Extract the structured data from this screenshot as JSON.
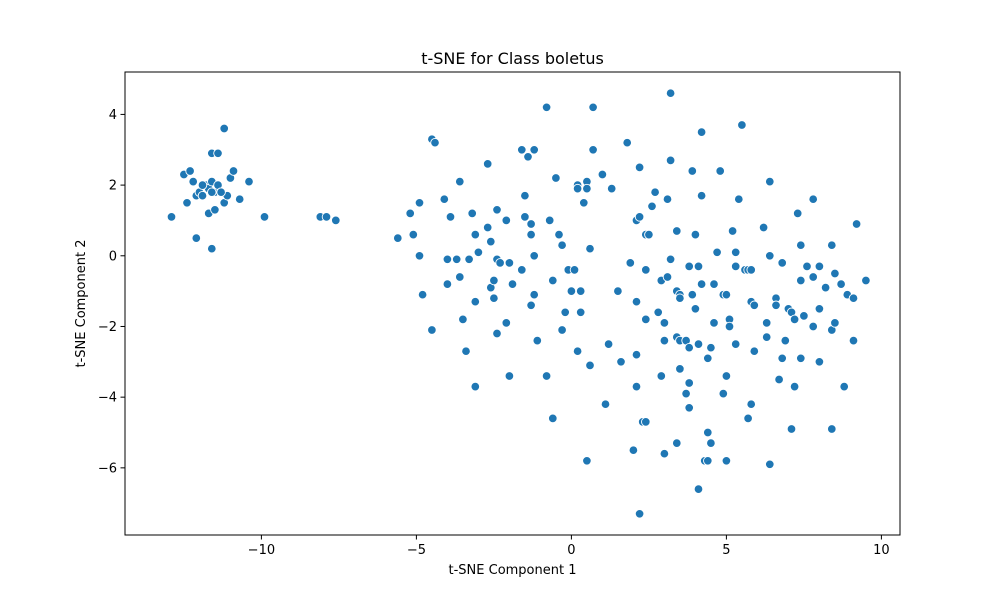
{
  "chart_data": {
    "type": "scatter",
    "title": "t-SNE for Class boletus",
    "xlabel": "t-SNE Component 1",
    "ylabel": "t-SNE Component 2",
    "xlim": [
      -14.4,
      10.6
    ],
    "ylim": [
      -7.9,
      5.2
    ],
    "xticks": [
      -10,
      -5,
      0,
      5,
      10
    ],
    "xtick_labels": [
      "−10",
      "−5",
      "0",
      "5",
      "10"
    ],
    "yticks": [
      -6,
      -4,
      -2,
      0,
      2,
      4
    ],
    "ytick_labels": [
      "−6",
      "−4",
      "−2",
      "0",
      "2",
      "4"
    ],
    "grid": false,
    "color": "#1f77b4",
    "series": [
      {
        "name": "boletus",
        "points": [
          [
            -12.9,
            1.1
          ],
          [
            -12.5,
            2.3
          ],
          [
            -12.4,
            1.5
          ],
          [
            -12.3,
            2.4
          ],
          [
            -12.2,
            2.1
          ],
          [
            -12.1,
            1.7
          ],
          [
            -12.0,
            1.8
          ],
          [
            -11.9,
            1.7
          ],
          [
            -11.8,
            2.0
          ],
          [
            -11.7,
            1.9
          ],
          [
            -11.6,
            2.1
          ],
          [
            -11.6,
            2.9
          ],
          [
            -11.5,
            1.8
          ],
          [
            -11.4,
            2.9
          ],
          [
            -11.4,
            2.0
          ],
          [
            -11.3,
            1.8
          ],
          [
            -11.2,
            1.5
          ],
          [
            -11.1,
            1.7
          ],
          [
            -11.0,
            2.2
          ],
          [
            -10.9,
            2.4
          ],
          [
            -11.7,
            1.2
          ],
          [
            -11.5,
            1.3
          ],
          [
            -11.2,
            3.6
          ],
          [
            -11.6,
            0.2
          ],
          [
            -12.1,
            0.5
          ],
          [
            -10.7,
            1.6
          ],
          [
            -10.4,
            2.1
          ],
          [
            -11.6,
            1.8
          ],
          [
            -11.3,
            1.8
          ],
          [
            -11.9,
            2.0
          ],
          [
            -9.9,
            1.1
          ],
          [
            -8.1,
            1.1
          ],
          [
            -7.9,
            1.1
          ],
          [
            -7.6,
            1.0
          ],
          [
            -5.6,
            0.5
          ],
          [
            -5.2,
            1.2
          ],
          [
            -5.1,
            0.6
          ],
          [
            -4.9,
            1.5
          ],
          [
            -4.9,
            0.0
          ],
          [
            -4.8,
            -1.1
          ],
          [
            -4.5,
            3.3
          ],
          [
            -4.4,
            3.2
          ],
          [
            -4.5,
            -2.1
          ],
          [
            -4.1,
            1.6
          ],
          [
            -3.9,
            1.1
          ],
          [
            -4.0,
            -0.1
          ],
          [
            -4.0,
            -0.8
          ],
          [
            -3.7,
            -0.1
          ],
          [
            -3.6,
            -0.6
          ],
          [
            -3.5,
            -1.8
          ],
          [
            -3.6,
            2.1
          ],
          [
            -3.4,
            -2.7
          ],
          [
            -3.3,
            -0.1
          ],
          [
            -3.2,
            1.2
          ],
          [
            -3.1,
            0.6
          ],
          [
            -3.0,
            0.1
          ],
          [
            -3.1,
            -1.3
          ],
          [
            -3.1,
            -3.7
          ],
          [
            -2.7,
            2.6
          ],
          [
            -2.7,
            0.8
          ],
          [
            -2.6,
            0.4
          ],
          [
            -2.6,
            -0.9
          ],
          [
            -2.5,
            -0.7
          ],
          [
            -2.5,
            -1.2
          ],
          [
            -2.4,
            -2.2
          ],
          [
            -2.4,
            1.3
          ],
          [
            -2.4,
            -0.1
          ],
          [
            -2.3,
            -0.2
          ],
          [
            -2.1,
            1.0
          ],
          [
            -2.1,
            -1.9
          ],
          [
            -2.0,
            -0.2
          ],
          [
            -2.0,
            -3.4
          ],
          [
            -1.9,
            -0.8
          ],
          [
            -1.6,
            -0.4
          ],
          [
            -1.6,
            3.0
          ],
          [
            -1.5,
            1.7
          ],
          [
            -1.5,
            1.1
          ],
          [
            -1.4,
            2.8
          ],
          [
            -1.3,
            0.9
          ],
          [
            -1.3,
            0.6
          ],
          [
            -1.3,
            -1.4
          ],
          [
            -1.2,
            -1.1
          ],
          [
            -1.2,
            3.0
          ],
          [
            -1.2,
            0.0
          ],
          [
            -1.1,
            -2.4
          ],
          [
            -0.8,
            4.2
          ],
          [
            -0.8,
            -3.4
          ],
          [
            -0.7,
            1.0
          ],
          [
            -0.6,
            -0.7
          ],
          [
            -0.5,
            2.2
          ],
          [
            -0.4,
            0.6
          ],
          [
            -0.3,
            0.3
          ],
          [
            -0.3,
            -2.1
          ],
          [
            -0.2,
            -1.6
          ],
          [
            -0.1,
            -0.4
          ],
          [
            0.0,
            -1.0
          ],
          [
            0.1,
            -0.4
          ],
          [
            0.2,
            2.0
          ],
          [
            0.2,
            1.9
          ],
          [
            0.2,
            -2.7
          ],
          [
            0.3,
            -1.0
          ],
          [
            0.3,
            -1.6
          ],
          [
            0.4,
            1.5
          ],
          [
            0.5,
            2.1
          ],
          [
            0.5,
            1.9
          ],
          [
            0.6,
            0.2
          ],
          [
            0.6,
            -3.1
          ],
          [
            0.7,
            4.2
          ],
          [
            0.7,
            3.0
          ],
          [
            0.5,
            -5.8
          ],
          [
            -0.6,
            -4.6
          ],
          [
            1.0,
            2.3
          ],
          [
            1.1,
            -4.2
          ],
          [
            1.2,
            -2.5
          ],
          [
            1.3,
            1.9
          ],
          [
            1.5,
            -1.0
          ],
          [
            1.6,
            -3.0
          ],
          [
            1.8,
            3.2
          ],
          [
            1.9,
            -0.2
          ],
          [
            2.0,
            -5.5
          ],
          [
            2.1,
            -3.7
          ],
          [
            2.1,
            -1.3
          ],
          [
            2.1,
            -2.8
          ],
          [
            2.1,
            1.0
          ],
          [
            2.2,
            1.1
          ],
          [
            2.2,
            2.5
          ],
          [
            2.3,
            -4.7
          ],
          [
            2.4,
            -4.7
          ],
          [
            2.4,
            -0.4
          ],
          [
            2.4,
            -1.8
          ],
          [
            2.4,
            0.6
          ],
          [
            2.5,
            0.6
          ],
          [
            2.6,
            1.4
          ],
          [
            2.7,
            1.8
          ],
          [
            2.9,
            -0.7
          ],
          [
            2.8,
            -1.6
          ],
          [
            3.0,
            -1.9
          ],
          [
            3.0,
            -2.4
          ],
          [
            3.1,
            1.6
          ],
          [
            3.0,
            -5.6
          ],
          [
            2.9,
            -3.4
          ],
          [
            3.1,
            -0.6
          ],
          [
            3.2,
            -0.1
          ],
          [
            3.2,
            2.7
          ],
          [
            3.2,
            4.6
          ],
          [
            3.4,
            0.7
          ],
          [
            3.4,
            -1.0
          ],
          [
            3.5,
            -1.1
          ],
          [
            3.5,
            -1.2
          ],
          [
            3.4,
            -2.3
          ],
          [
            3.5,
            -2.4
          ],
          [
            3.5,
            -3.2
          ],
          [
            3.4,
            -5.3
          ],
          [
            3.8,
            -3.6
          ],
          [
            3.8,
            -4.3
          ],
          [
            3.7,
            -3.9
          ],
          [
            3.7,
            -2.4
          ],
          [
            3.8,
            -2.6
          ],
          [
            3.8,
            -0.3
          ],
          [
            3.9,
            -1.1
          ],
          [
            4.0,
            -1.5
          ],
          [
            4.0,
            0.6
          ],
          [
            4.1,
            -0.3
          ],
          [
            4.2,
            -0.8
          ],
          [
            4.2,
            1.7
          ],
          [
            4.2,
            3.5
          ],
          [
            4.1,
            -2.5
          ],
          [
            4.1,
            -6.6
          ],
          [
            4.3,
            -5.8
          ],
          [
            4.4,
            -5.8
          ],
          [
            4.4,
            -5.0
          ],
          [
            4.5,
            -5.3
          ],
          [
            4.4,
            -2.9
          ],
          [
            4.5,
            -2.6
          ],
          [
            4.6,
            -0.8
          ],
          [
            4.7,
            0.1
          ],
          [
            4.8,
            2.4
          ],
          [
            4.9,
            -1.1
          ],
          [
            4.9,
            -3.9
          ],
          [
            5.0,
            -1.1
          ],
          [
            5.0,
            -3.4
          ],
          [
            5.0,
            -5.8
          ],
          [
            5.1,
            -1.8
          ],
          [
            5.1,
            -2.0
          ],
          [
            5.2,
            0.7
          ],
          [
            5.3,
            -0.3
          ],
          [
            5.3,
            -2.5
          ],
          [
            5.4,
            1.6
          ],
          [
            5.5,
            3.7
          ],
          [
            5.6,
            -0.4
          ],
          [
            5.7,
            -0.4
          ],
          [
            5.8,
            -0.4
          ],
          [
            5.8,
            -4.2
          ],
          [
            5.7,
            -4.6
          ],
          [
            5.8,
            -1.3
          ],
          [
            5.9,
            -2.7
          ],
          [
            5.9,
            -1.4
          ],
          [
            6.2,
            0.8
          ],
          [
            6.3,
            -1.9
          ],
          [
            6.3,
            -2.3
          ],
          [
            6.4,
            0.0
          ],
          [
            6.4,
            2.1
          ],
          [
            6.4,
            -5.9
          ],
          [
            6.6,
            -1.2
          ],
          [
            6.6,
            -1.4
          ],
          [
            6.7,
            -3.5
          ],
          [
            6.8,
            -2.9
          ],
          [
            6.8,
            -0.2
          ],
          [
            6.9,
            -2.4
          ],
          [
            7.0,
            -1.5
          ],
          [
            7.1,
            -4.9
          ],
          [
            7.1,
            -1.6
          ],
          [
            7.2,
            -1.8
          ],
          [
            7.3,
            1.2
          ],
          [
            7.2,
            -3.7
          ],
          [
            7.4,
            0.3
          ],
          [
            7.4,
            -0.7
          ],
          [
            7.4,
            -2.9
          ],
          [
            7.5,
            -1.7
          ],
          [
            7.6,
            -0.3
          ],
          [
            7.8,
            1.6
          ],
          [
            7.8,
            -0.6
          ],
          [
            7.8,
            -2.0
          ],
          [
            8.0,
            -1.5
          ],
          [
            8.0,
            -3.0
          ],
          [
            8.0,
            -0.3
          ],
          [
            8.2,
            -0.9
          ],
          [
            8.4,
            0.3
          ],
          [
            8.4,
            -2.1
          ],
          [
            8.5,
            -1.9
          ],
          [
            8.5,
            -0.5
          ],
          [
            8.4,
            -4.9
          ],
          [
            8.7,
            -0.8
          ],
          [
            8.8,
            -3.7
          ],
          [
            8.9,
            -1.1
          ],
          [
            9.1,
            -1.2
          ],
          [
            9.1,
            -2.4
          ],
          [
            9.2,
            0.9
          ],
          [
            9.5,
            -0.7
          ],
          [
            2.2,
            -7.3
          ],
          [
            3.9,
            2.4
          ],
          [
            5.3,
            0.1
          ],
          [
            4.6,
            -1.9
          ]
        ]
      }
    ]
  }
}
